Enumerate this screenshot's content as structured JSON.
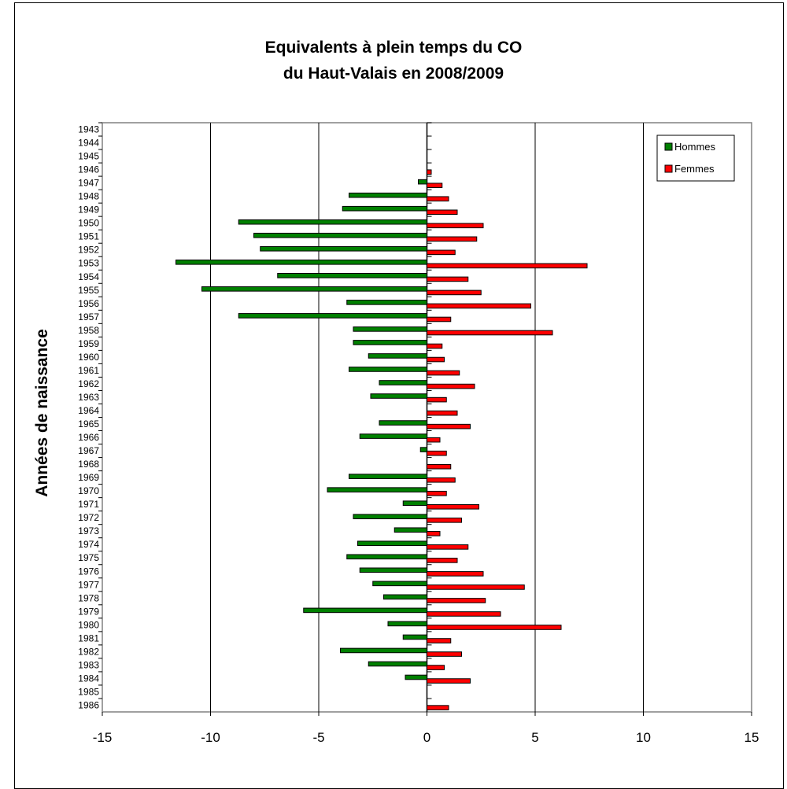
{
  "chart_data": {
    "type": "bar",
    "orientation": "horizontal",
    "title": "Equivalents à plein temps du CO",
    "subtitle": "du Haut-Valais en 2008/2009",
    "ylabel": "Années de naissance",
    "xlabel": "",
    "xlim": [
      -15,
      15
    ],
    "xticks": [
      "-15",
      "-10",
      "-5",
      "0",
      "5",
      "10",
      "15"
    ],
    "grid": true,
    "legend_position": "top-right",
    "categories": [
      "1943",
      "1944",
      "1945",
      "1946",
      "1947",
      "1948",
      "1949",
      "1950",
      "1951",
      "1952",
      "1953",
      "1954",
      "1955",
      "1956",
      "1957",
      "1958",
      "1959",
      "1960",
      "1961",
      "1962",
      "1963",
      "1964",
      "1965",
      "1966",
      "1967",
      "1968",
      "1969",
      "1970",
      "1971",
      "1972",
      "1973",
      "1974",
      "1975",
      "1976",
      "1977",
      "1978",
      "1979",
      "1980",
      "1981",
      "1982",
      "1983",
      "1984",
      "1985",
      "1986"
    ],
    "series": [
      {
        "name": "Hommes",
        "color": "#008000",
        "values": [
          0,
          0,
          0,
          0,
          -0.4,
          -3.6,
          -3.9,
          -8.7,
          -8.0,
          -7.7,
          -11.6,
          -6.9,
          -10.4,
          -3.7,
          -8.7,
          -3.4,
          -3.4,
          -2.7,
          -3.6,
          -2.2,
          -2.6,
          0,
          -2.2,
          -3.1,
          -0.3,
          0,
          -3.6,
          -4.6,
          -1.1,
          -3.4,
          -1.5,
          -3.2,
          -3.7,
          -3.1,
          -2.5,
          -2.0,
          -5.7,
          -1.8,
          -1.1,
          -4.0,
          -2.7,
          -1.0,
          0,
          0
        ]
      },
      {
        "name": "Femmes",
        "color": "#ff0000",
        "values": [
          0,
          0,
          0,
          0.2,
          0.7,
          1.0,
          1.4,
          2.6,
          2.3,
          1.3,
          7.4,
          1.9,
          2.5,
          4.8,
          1.1,
          5.8,
          0.7,
          0.8,
          1.5,
          2.2,
          0.9,
          1.4,
          2.0,
          0.6,
          0.9,
          1.1,
          1.3,
          0.9,
          2.4,
          1.6,
          0.6,
          1.9,
          1.4,
          2.6,
          4.5,
          2.7,
          3.4,
          6.2,
          1.1,
          1.6,
          0.8,
          2.0,
          0,
          1.0
        ]
      }
    ]
  }
}
